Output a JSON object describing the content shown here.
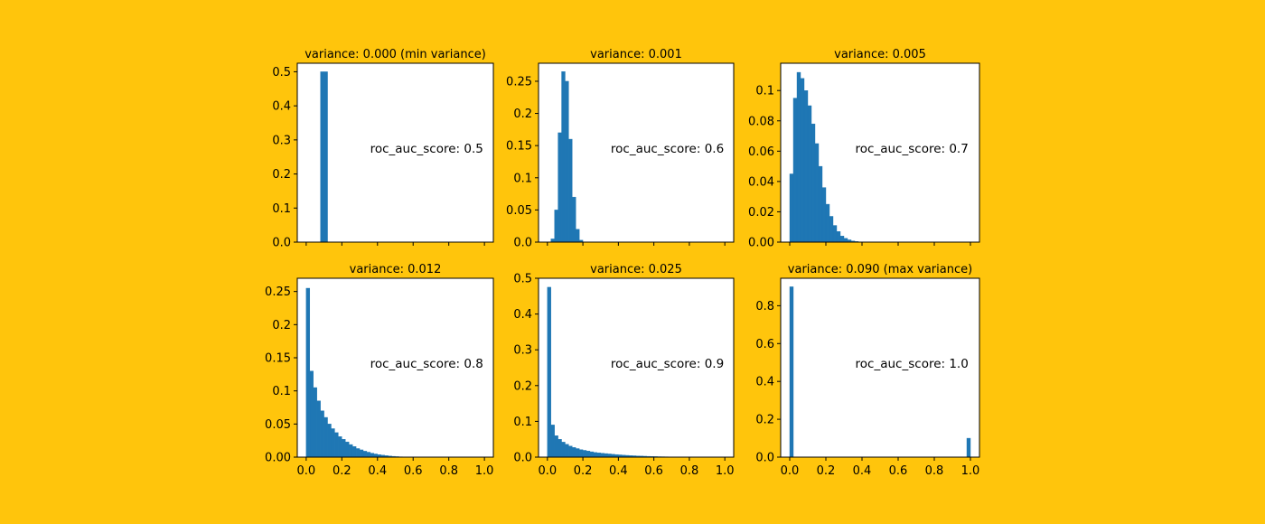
{
  "colors": {
    "background": "#FFC50C",
    "bar": "#1F77B4",
    "axes_face": "#FFFFFF",
    "axes_edge": "#000000"
  },
  "chart_data": [
    {
      "type": "bar",
      "title": "variance: 0.000 (min variance)",
      "annotation": "roc_auc_score: 0.5",
      "xlim": [
        -0.05,
        1.05
      ],
      "ylim": [
        0,
        0.525
      ],
      "xticks": [
        0.0,
        0.2,
        0.4,
        0.6,
        0.8,
        1.0
      ],
      "yticks": [
        0.0,
        0.1,
        0.2,
        0.3,
        0.4,
        0.5
      ],
      "ytick_labels": [
        "0.0",
        "0.1",
        "0.2",
        "0.3",
        "0.4",
        "0.5"
      ],
      "show_xtick_labels": false,
      "bin_width": 0.02,
      "bins": [
        [
          0.08,
          0.5
        ],
        [
          0.1,
          0.5
        ]
      ]
    },
    {
      "type": "bar",
      "title": "variance: 0.001",
      "annotation": "roc_auc_score: 0.6",
      "xlim": [
        -0.05,
        1.05
      ],
      "ylim": [
        0,
        0.278
      ],
      "xticks": [
        0.0,
        0.2,
        0.4,
        0.6,
        0.8,
        1.0
      ],
      "yticks": [
        0.0,
        0.05,
        0.1,
        0.15,
        0.2,
        0.25
      ],
      "ytick_labels": [
        "0.0",
        "0.05",
        "0.1",
        "0.15",
        "0.2",
        "0.25"
      ],
      "show_xtick_labels": false,
      "bin_width": 0.02,
      "bins": [
        [
          0.02,
          0.005
        ],
        [
          0.04,
          0.05
        ],
        [
          0.06,
          0.17
        ],
        [
          0.08,
          0.265
        ],
        [
          0.1,
          0.25
        ],
        [
          0.12,
          0.16
        ],
        [
          0.14,
          0.07
        ],
        [
          0.16,
          0.02
        ],
        [
          0.18,
          0.003
        ]
      ]
    },
    {
      "type": "bar",
      "title": "variance: 0.005",
      "annotation": "roc_auc_score: 0.7",
      "xlim": [
        -0.05,
        1.05
      ],
      "ylim": [
        0,
        0.118
      ],
      "xticks": [
        0.0,
        0.2,
        0.4,
        0.6,
        0.8,
        1.0
      ],
      "yticks": [
        0.0,
        0.02,
        0.04,
        0.06,
        0.08,
        0.1
      ],
      "ytick_labels": [
        "0.00",
        "0.02",
        "0.04",
        "0.06",
        "0.08",
        "0.1"
      ],
      "show_xtick_labels": false,
      "bin_width": 0.02,
      "bins": [
        [
          0.0,
          0.045
        ],
        [
          0.02,
          0.095
        ],
        [
          0.04,
          0.112
        ],
        [
          0.06,
          0.108
        ],
        [
          0.08,
          0.1
        ],
        [
          0.1,
          0.09
        ],
        [
          0.12,
          0.078
        ],
        [
          0.14,
          0.065
        ],
        [
          0.16,
          0.05
        ],
        [
          0.18,
          0.036
        ],
        [
          0.2,
          0.025
        ],
        [
          0.22,
          0.017
        ],
        [
          0.24,
          0.011
        ],
        [
          0.26,
          0.007
        ],
        [
          0.28,
          0.004
        ],
        [
          0.3,
          0.0025
        ],
        [
          0.32,
          0.0015
        ],
        [
          0.34,
          0.0008
        ],
        [
          0.36,
          0.0004
        ]
      ]
    },
    {
      "type": "bar",
      "title": "variance: 0.012",
      "annotation": "roc_auc_score: 0.8",
      "xlim": [
        -0.05,
        1.05
      ],
      "ylim": [
        0,
        0.27
      ],
      "xticks": [
        0.0,
        0.2,
        0.4,
        0.6,
        0.8,
        1.0
      ],
      "yticks": [
        0.0,
        0.05,
        0.1,
        0.15,
        0.2,
        0.25
      ],
      "ytick_labels": [
        "0.00",
        "0.05",
        "0.1",
        "0.15",
        "0.2",
        "0.25"
      ],
      "show_xtick_labels": true,
      "xtick_labels": [
        "0.0",
        "0.2",
        "0.4",
        "0.6",
        "0.8",
        "1.0"
      ],
      "bin_width": 0.02,
      "bins": [
        [
          0.0,
          0.255
        ],
        [
          0.02,
          0.13
        ],
        [
          0.04,
          0.105
        ],
        [
          0.06,
          0.085
        ],
        [
          0.08,
          0.07
        ],
        [
          0.1,
          0.06
        ],
        [
          0.12,
          0.05
        ],
        [
          0.14,
          0.043
        ],
        [
          0.16,
          0.037
        ],
        [
          0.18,
          0.031
        ],
        [
          0.2,
          0.027
        ],
        [
          0.22,
          0.023
        ],
        [
          0.24,
          0.019
        ],
        [
          0.26,
          0.016
        ],
        [
          0.28,
          0.013
        ],
        [
          0.3,
          0.011
        ],
        [
          0.32,
          0.009
        ],
        [
          0.34,
          0.0075
        ],
        [
          0.36,
          0.006
        ],
        [
          0.38,
          0.0048
        ],
        [
          0.4,
          0.0038
        ],
        [
          0.42,
          0.003
        ],
        [
          0.44,
          0.0023
        ],
        [
          0.46,
          0.0017
        ],
        [
          0.48,
          0.0012
        ],
        [
          0.5,
          0.0008
        ],
        [
          0.52,
          0.0005
        ],
        [
          0.54,
          0.0003
        ],
        [
          0.56,
          0.0002
        ]
      ]
    },
    {
      "type": "bar",
      "title": "variance: 0.025",
      "annotation": "roc_auc_score: 0.9",
      "xlim": [
        -0.05,
        1.05
      ],
      "ylim": [
        0,
        0.5
      ],
      "xticks": [
        0.0,
        0.2,
        0.4,
        0.6,
        0.8,
        1.0
      ],
      "yticks": [
        0.0,
        0.1,
        0.2,
        0.3,
        0.4,
        0.5
      ],
      "ytick_labels": [
        "0.0",
        "0.1",
        "0.2",
        "0.3",
        "0.4",
        "0.5"
      ],
      "show_xtick_labels": true,
      "xtick_labels": [
        "0.0",
        "0.2",
        "0.4",
        "0.6",
        "0.8",
        "1.0"
      ],
      "bin_width": 0.02,
      "bins": [
        [
          0.0,
          0.475
        ],
        [
          0.02,
          0.09
        ],
        [
          0.04,
          0.06
        ],
        [
          0.06,
          0.05
        ],
        [
          0.08,
          0.042
        ],
        [
          0.1,
          0.036
        ],
        [
          0.12,
          0.031
        ],
        [
          0.14,
          0.027
        ],
        [
          0.16,
          0.024
        ],
        [
          0.18,
          0.021
        ],
        [
          0.2,
          0.019
        ],
        [
          0.22,
          0.017
        ],
        [
          0.24,
          0.015
        ],
        [
          0.26,
          0.013
        ],
        [
          0.28,
          0.012
        ],
        [
          0.3,
          0.011
        ],
        [
          0.32,
          0.01
        ],
        [
          0.34,
          0.009
        ],
        [
          0.36,
          0.008
        ],
        [
          0.38,
          0.0072
        ],
        [
          0.4,
          0.0064
        ],
        [
          0.42,
          0.0057
        ],
        [
          0.44,
          0.005
        ],
        [
          0.46,
          0.0044
        ],
        [
          0.48,
          0.0039
        ],
        [
          0.5,
          0.0034
        ],
        [
          0.52,
          0.003
        ],
        [
          0.54,
          0.0026
        ],
        [
          0.56,
          0.0022
        ],
        [
          0.58,
          0.0019
        ],
        [
          0.6,
          0.0016
        ],
        [
          0.62,
          0.0013
        ],
        [
          0.64,
          0.0011
        ],
        [
          0.66,
          0.0009
        ],
        [
          0.68,
          0.0007
        ],
        [
          0.7,
          0.0006
        ],
        [
          0.72,
          0.0005
        ],
        [
          0.74,
          0.0004
        ],
        [
          0.76,
          0.0003
        ],
        [
          0.78,
          0.0002
        ]
      ]
    },
    {
      "type": "bar",
      "title": "variance: 0.090 (max variance)",
      "annotation": "roc_auc_score: 1.0",
      "xlim": [
        -0.05,
        1.05
      ],
      "ylim": [
        0,
        0.945
      ],
      "xticks": [
        0.0,
        0.2,
        0.4,
        0.6,
        0.8,
        1.0
      ],
      "yticks": [
        0.0,
        0.2,
        0.4,
        0.6,
        0.8
      ],
      "ytick_labels": [
        "0.0",
        "0.2",
        "0.4",
        "0.6",
        "0.8"
      ],
      "show_xtick_labels": true,
      "xtick_labels": [
        "0.0",
        "0.2",
        "0.4",
        "0.6",
        "0.8",
        "1.0"
      ],
      "bin_width": 0.02,
      "bins": [
        [
          0.0,
          0.9
        ],
        [
          0.98,
          0.1
        ]
      ]
    }
  ]
}
